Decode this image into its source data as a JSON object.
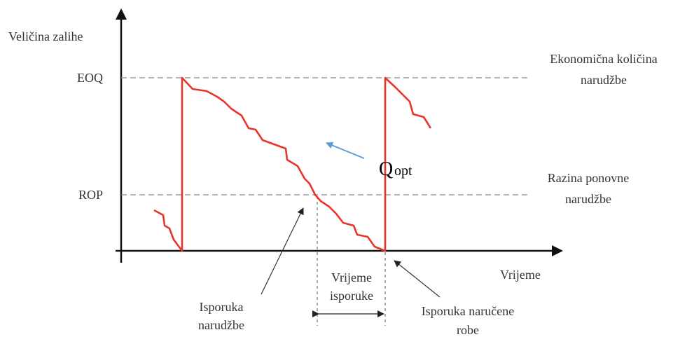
{
  "axes": {
    "y_label": "Veličina zalihe",
    "x_label": "Vrijeme"
  },
  "levels": [
    {
      "label": "EOQ",
      "description": [
        "Ekonomična količina",
        "narudžbe"
      ]
    },
    {
      "label": "ROP",
      "description": [
        "Razina ponovne",
        "narudžbe"
      ]
    }
  ],
  "annotations": {
    "q_opt": {
      "main": "Q",
      "sub": "opt"
    },
    "lead_time": [
      "Vrijeme",
      "isporuke"
    ],
    "order_delivery": [
      "Isporuka",
      "narudžbe"
    ],
    "goods_delivery": [
      "Isporuka naručene",
      "robe"
    ]
  }
}
